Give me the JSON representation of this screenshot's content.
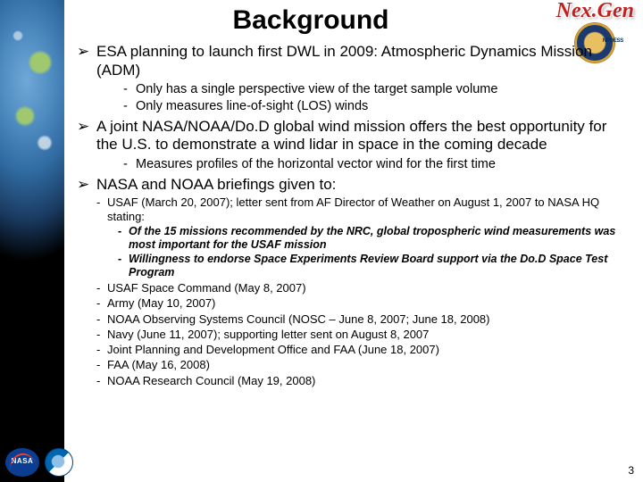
{
  "title": "Background",
  "page_number": "3",
  "logos_top": {
    "text": "Nex.Gen",
    "badge": "NPOESS"
  },
  "bullets": [
    {
      "text": "ESA planning to launch first DWL in 2009: Atmospheric Dynamics Mission (ADM)",
      "sub": [
        {
          "text": "Only has a single perspective view of the target sample volume"
        },
        {
          "text": "Only measures line-of-sight (LOS) winds"
        }
      ]
    },
    {
      "text": "A joint NASA/NOAA/Do.D global wind mission offers the best opportunity for the U.S. to demonstrate a wind lidar in space in the coming decade",
      "sub": [
        {
          "text": "Measures profiles of the horizontal vector wind for the first time"
        }
      ]
    },
    {
      "text": "NASA and NOAA briefings given to:",
      "sub2": [
        {
          "text": "USAF (March 20, 2007); letter sent from AF Director of Weather on August 1, 2007 to NASA HQ stating:",
          "sub3": [
            "Of the 15 missions recommended by the NRC, global tropospheric wind measurements was most important for the USAF mission",
            "Willingness to endorse Space Experiments Review Board support via the Do.D Space Test Program"
          ]
        },
        {
          "text": "USAF Space Command (May 8, 2007)"
        },
        {
          "text": "Army (May 10, 2007)"
        },
        {
          "text": "NOAA Observing Systems Council (NOSC – June 8, 2007; June 18, 2008)"
        },
        {
          "text": "Navy (June 11, 2007); supporting letter sent on August 8, 2007"
        },
        {
          "text": "Joint Planning and Development Office and FAA (June 18, 2007)"
        },
        {
          "text": "FAA (May 16, 2008)"
        },
        {
          "text": "NOAA Research Council (May 19, 2008)"
        }
      ]
    }
  ]
}
